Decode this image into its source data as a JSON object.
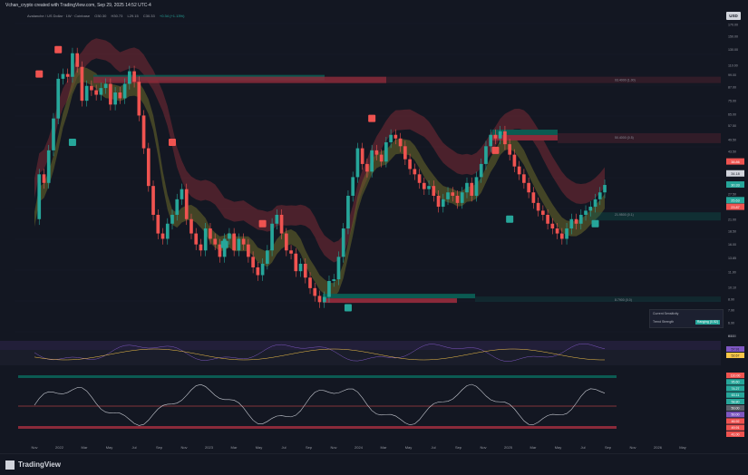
{
  "header": {
    "credit": "Vchan_crypto created with TradingView.com, Sep 29, 2025 14:52 UTC-4",
    "symbol": "Avalanche / US Dollar · 1W · Coinbase",
    "ohlc": [
      "O30.30",
      "H30.73",
      "L29.15",
      "C30.33",
      "+0.34 (+1.13%)"
    ],
    "currency": "USD",
    "brand": "TradingView"
  },
  "colors": {
    "up": "#26a69a",
    "down": "#ef5350",
    "cloud_red": "#7a2a35",
    "cloud_olive": "#6b6a2a",
    "cloud_blue": "#2a4f86",
    "band": "#0b5b52"
  },
  "chart_data": [
    {
      "type": "candlestick",
      "title": "",
      "yscale": "log",
      "ylim": [
        5.9,
        172
      ],
      "x_ticks": [
        "Nov",
        "2022",
        "Mar",
        "May",
        "Jul",
        "Sep",
        "Nov",
        "2023",
        "Mar",
        "May",
        "Jul",
        "Sep",
        "Nov",
        "2024",
        "Mar",
        "May",
        "Jul",
        "Sep",
        "Nov",
        "2025",
        "Mar",
        "May",
        "Jul",
        "Sep",
        "Nov",
        "2026",
        "May"
      ],
      "y_ticks": [
        170.0,
        150.0,
        130.0,
        110.0,
        99.0,
        87.0,
        75.0,
        65.0,
        57.5,
        49.5,
        43.5,
        38.25,
        34.0,
        30.35,
        27.5,
        24.0,
        21.0,
        18.5,
        16.0,
        13.85,
        11.9,
        10.1,
        8.9,
        7.9,
        6.9,
        6.0
      ],
      "price_labels": [
        {
          "text": "38.86",
          "color": "#ef5350",
          "value": 38.86
        },
        {
          "text": "34.18",
          "color": "#d1d4dc",
          "value": 34.18
        },
        {
          "text": "30.33",
          "color": "#26a69a",
          "value": 30.33
        },
        {
          "text": "25.63",
          "color": "#26a69a",
          "value": 25.63
        },
        {
          "text": "23.87",
          "color": "#ef5350",
          "value": 23.87
        }
      ],
      "close_path": [
        21,
        34,
        31,
        44,
        62,
        95,
        100,
        97,
        125,
        108,
        75,
        88,
        84,
        80,
        86,
        90,
        72,
        82,
        77,
        90,
        103,
        92,
        64,
        45,
        30,
        22,
        18,
        17,
        20,
        22,
        26,
        29,
        21,
        18,
        16,
        15,
        19,
        17,
        16,
        14,
        17,
        18,
        15,
        17,
        16,
        14,
        12.5,
        11.5,
        13,
        15,
        20,
        22,
        18,
        15,
        14.5,
        12,
        13,
        11.2,
        10,
        9.2,
        8.6,
        9.1,
        10.8,
        11,
        14,
        19,
        27,
        33,
        45,
        38,
        35,
        44,
        42,
        39,
        48,
        52,
        50,
        46,
        40,
        36,
        34,
        31,
        29,
        30,
        27,
        24,
        26,
        28,
        27,
        25,
        28,
        31,
        27,
        33,
        38,
        46,
        52,
        50,
        54,
        47,
        42,
        37,
        34,
        31,
        28,
        25,
        23,
        22,
        20,
        19,
        18,
        17,
        19,
        21,
        20,
        22,
        23,
        24,
        26,
        28,
        30.33
      ],
      "annotations": [
        {
          "text": "93.4000 (1.00)",
          "value": 93.4
        },
        {
          "text": "50.4000 (0.5)",
          "value": 50.4
        },
        {
          "text": "21.9500 (0.1)",
          "value": 21.95
        },
        {
          "text": "8.7900 (0.0)",
          "value": 8.79
        }
      ],
      "legend": [
        {
          "text": "Current Sensitivity",
          "value": ""
        },
        {
          "text": "Trend Strength",
          "value": "Ranging (0.52)"
        }
      ]
    },
    {
      "type": "line",
      "title": "",
      "ylim": [
        40,
        60
      ],
      "y_ticks": [
        80.0
      ],
      "price_labels": [
        {
          "text": "57.91",
          "color": "#7e57c2"
        },
        {
          "text": "52.67",
          "color": "#f7c548"
        }
      ]
    },
    {
      "type": "line",
      "title": "",
      "y_ticks": [],
      "price_labels": [
        {
          "text": "110.00",
          "color": "#ef5350"
        },
        {
          "text": "95.60",
          "color": "#26a69a"
        },
        {
          "text": "74.27",
          "color": "#26a69a"
        },
        {
          "text": "63.11",
          "color": "#26a69a"
        },
        {
          "text": "58.80",
          "color": "#26a69a"
        },
        {
          "text": "50.00",
          "color": "#5d606b"
        },
        {
          "text": "50.00",
          "color": "#7e57c2"
        },
        {
          "text": "46.92",
          "color": "#ef5350"
        },
        {
          "text": "49.91",
          "color": "#ef5350"
        },
        {
          "text": "41.00",
          "color": "#ef5350"
        }
      ]
    }
  ]
}
